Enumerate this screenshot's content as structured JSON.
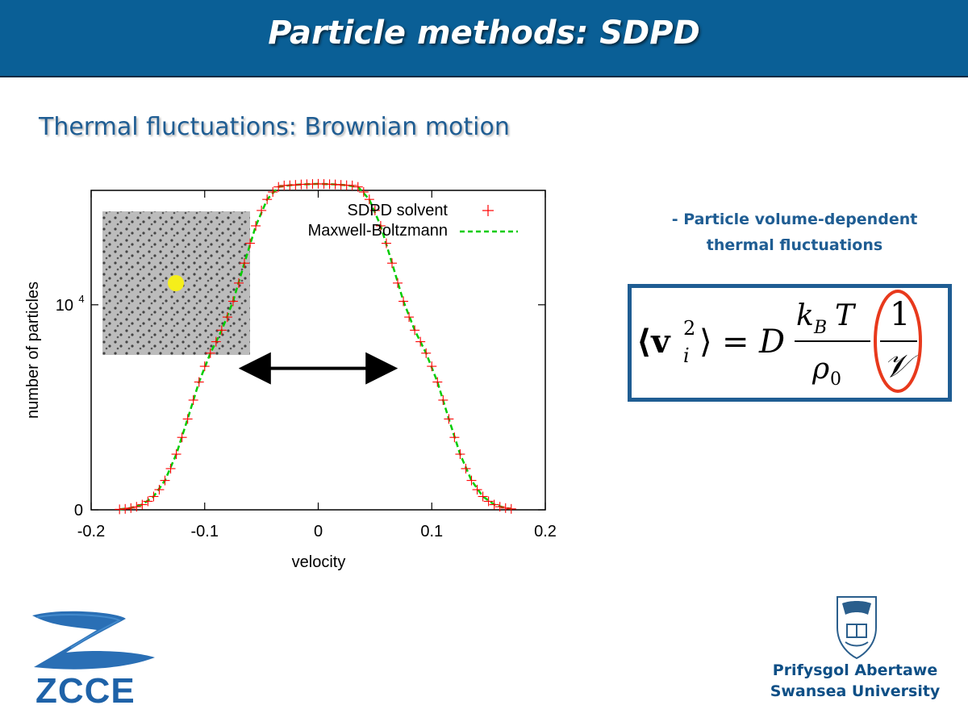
{
  "header": {
    "title": "Particle methods: SDPD"
  },
  "subtitle": "Thermal fluctuations: Brownian motion",
  "note": {
    "line1": "- Particle volume-dependent",
    "line2": "thermal fluctuations"
  },
  "equation": {
    "lhs": "⟨v",
    "sup": "2",
    "sub": "i",
    "rhs_close": "⟩",
    "equals": "=",
    "D": "D",
    "kBT": "k",
    "kB_sub": "B",
    "T": "T",
    "rho": "ρ",
    "rho_sub": "0",
    "one": "1",
    "V": "𝒱"
  },
  "colors": {
    "header": "#0a5f96",
    "accent": "#1f5d93",
    "sdpd": "#ff0000",
    "mb": "#00cc00",
    "highlight": "#e8391c"
  },
  "chart_data": {
    "type": "scatter",
    "xlabel": "velocity",
    "ylabel": "number of particles",
    "xlim": [
      -0.2,
      0.2
    ],
    "xticks": [
      "-0.2",
      "-0.1",
      "0",
      "0.1",
      "0.2"
    ],
    "yticks": [
      {
        "value": 0,
        "label": "0"
      },
      {
        "value": 10000,
        "label": "10",
        "exp": "4"
      }
    ],
    "ylim": [
      0,
      15580
    ],
    "legend_position": "top-right",
    "series": [
      {
        "name": "SDPD solvent",
        "marker": "+",
        "color": "#ff0000",
        "x": [
          -0.175,
          -0.17,
          -0.165,
          -0.16,
          -0.155,
          -0.15,
          -0.145,
          -0.14,
          -0.135,
          -0.13,
          -0.125,
          -0.12,
          -0.115,
          -0.11,
          -0.105,
          -0.1,
          -0.095,
          -0.09,
          -0.085,
          -0.08,
          -0.075,
          -0.07,
          -0.065,
          -0.06,
          -0.055,
          -0.05,
          -0.045,
          -0.04,
          -0.035,
          -0.03,
          -0.025,
          -0.02,
          -0.015,
          -0.01,
          -0.005,
          0,
          0.005,
          0.01,
          0.015,
          0.02,
          0.025,
          0.03,
          0.035,
          0.04,
          0.045,
          0.05,
          0.055,
          0.06,
          0.065,
          0.07,
          0.075,
          0.08,
          0.085,
          0.09,
          0.095,
          0.1,
          0.105,
          0.11,
          0.115,
          0.12,
          0.125,
          0.13,
          0.135,
          0.14,
          0.145,
          0.15,
          0.155,
          0.16,
          0.165,
          0.17
        ],
        "y": [
          24,
          46,
          85,
          150,
          254,
          414,
          650,
          983,
          1432,
          2009,
          2714,
          3533,
          4430,
          5351,
          6233,
          7000,
          7640,
          8200,
          8760,
          9400,
          10170,
          11060,
          12030,
          13000,
          13850,
          14600,
          15140,
          15500,
          15750,
          15820,
          15830,
          15850,
          15870,
          15880,
          15890,
          15900,
          15890,
          15880,
          15870,
          15850,
          15830,
          15820,
          15750,
          15500,
          15140,
          14600,
          13850,
          13000,
          12030,
          11060,
          10170,
          9400,
          8760,
          8200,
          7640,
          7000,
          6233,
          5351,
          4430,
          3533,
          2714,
          2009,
          1432,
          983,
          650,
          414,
          254,
          150,
          85,
          46
        ]
      },
      {
        "name": "Maxwell-Boltzmann",
        "style": "dashed",
        "color": "#00cc00",
        "x": [
          -0.175,
          -0.165,
          -0.155,
          -0.145,
          -0.135,
          -0.125,
          -0.115,
          -0.105,
          -0.095,
          -0.085,
          -0.075,
          -0.065,
          -0.055,
          -0.045,
          -0.035,
          -0.025,
          -0.015,
          -0.005,
          0,
          0.005,
          0.015,
          0.025,
          0.035,
          0.045,
          0.055,
          0.065,
          0.075,
          0.085,
          0.095,
          0.105,
          0.115,
          0.125,
          0.135,
          0.145,
          0.155,
          0.165,
          0.17
        ],
        "y": [
          24,
          85,
          254,
          650,
          1432,
          2714,
          4430,
          6233,
          7640,
          8760,
          10170,
          12030,
          13850,
          15140,
          15750,
          15830,
          15870,
          15890,
          15900,
          15890,
          15870,
          15830,
          15750,
          15140,
          13850,
          12030,
          10170,
          8760,
          7640,
          6233,
          4430,
          2714,
          1432,
          650,
          254,
          85,
          46
        ]
      }
    ],
    "annotation": {
      "type": "double-arrow",
      "x_from": -0.063,
      "x_to": 0.063,
      "y": 6900
    }
  }
}
